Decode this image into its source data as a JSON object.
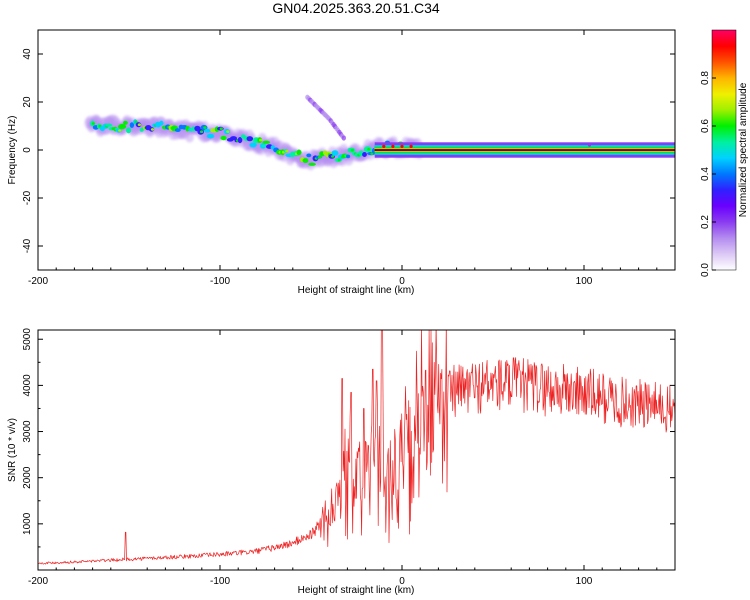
{
  "figure_title": "GN04.2025.363.20.51.C34",
  "colors": {
    "snr_line": "#ee2222",
    "colormap": [
      "#ffffff",
      "#dcc8f5",
      "#b48cf0",
      "#8a3cf0",
      "#6a00ff",
      "#3020ff",
      "#0078ff",
      "#00d2ff",
      "#00f0a0",
      "#00f000",
      "#a0f000",
      "#f0f000",
      "#ffb400",
      "#ff5000",
      "#ff0000",
      "#ff0064"
    ]
  },
  "chart_data": [
    {
      "type": "heatmap",
      "title": "",
      "xlabel": "Height of straight line (km)",
      "ylabel": "Frequency (Hz)",
      "xlim": [
        -200,
        150
      ],
      "ylim": [
        -50,
        50
      ],
      "xticks": [
        -200,
        -100,
        0,
        100
      ],
      "yticks": [
        -40,
        -20,
        0,
        20,
        40
      ],
      "colorbar": {
        "label": "Normalized spectral amplitude",
        "range": [
          0,
          1
        ],
        "ticks": [
          "0.0",
          "0.2",
          "0.4",
          "0.6",
          "0.8"
        ]
      },
      "ridge": {
        "description": "dominant frequency track",
        "x": [
          -170,
          -160,
          -150,
          -140,
          -130,
          -120,
          -110,
          -100,
          -90,
          -80,
          -70,
          -60,
          -50,
          -40,
          -30,
          -20,
          -10,
          0,
          10,
          20,
          50,
          100,
          150
        ],
        "y": [
          10,
          10,
          10,
          10,
          9,
          8,
          8,
          7,
          5,
          3,
          1,
          -2,
          -4,
          -3,
          -2,
          0,
          1,
          1,
          1,
          1,
          0,
          0,
          0
        ]
      },
      "branch": {
        "description": "upper branch near -45 to -30 km",
        "x": [
          -52,
          -48,
          -44,
          -40,
          -36,
          -32
        ],
        "y": [
          22,
          19,
          16,
          13,
          9,
          5
        ]
      }
    },
    {
      "type": "line",
      "title": "",
      "xlabel": "Height of straight line (km)",
      "ylabel": "SNR (10 * v/v)",
      "xlim": [
        -200,
        150
      ],
      "ylim": [
        0,
        5200
      ],
      "xticks": [
        -200,
        -100,
        0,
        100
      ],
      "yticks": [
        1000,
        2000,
        3000,
        4000,
        5000
      ],
      "series": [
        {
          "name": "SNR",
          "envelope_x": [
            -200,
            -180,
            -160,
            -140,
            -120,
            -100,
            -90,
            -80,
            -70,
            -60,
            -50,
            -45,
            -40,
            -35,
            -30,
            -25,
            -20,
            -15,
            -10,
            -5,
            0,
            5,
            10,
            15,
            20,
            30,
            40,
            50,
            60,
            70,
            80,
            90,
            100,
            110,
            120,
            130,
            140,
            150
          ],
          "envelope_y": [
            150,
            180,
            220,
            260,
            300,
            350,
            380,
            420,
            500,
            600,
            800,
            1000,
            1300,
            1800,
            2000,
            2100,
            2200,
            2300,
            2200,
            2100,
            2500,
            2900,
            3300,
            3600,
            3800,
            4000,
            4100,
            4150,
            4150,
            4100,
            4050,
            4000,
            3950,
            3850,
            3750,
            3700,
            3650,
            3550
          ],
          "spikes": [
            {
              "x": -152,
              "y": 820
            },
            {
              "x": -33,
              "y": 4150
            },
            {
              "x": -28,
              "y": 3850
            },
            {
              "x": -21,
              "y": 3500
            },
            {
              "x": -16,
              "y": 4350
            },
            {
              "x": -14,
              "y": 4100
            },
            {
              "x": -11,
              "y": 5200
            }
          ]
        }
      ]
    }
  ]
}
